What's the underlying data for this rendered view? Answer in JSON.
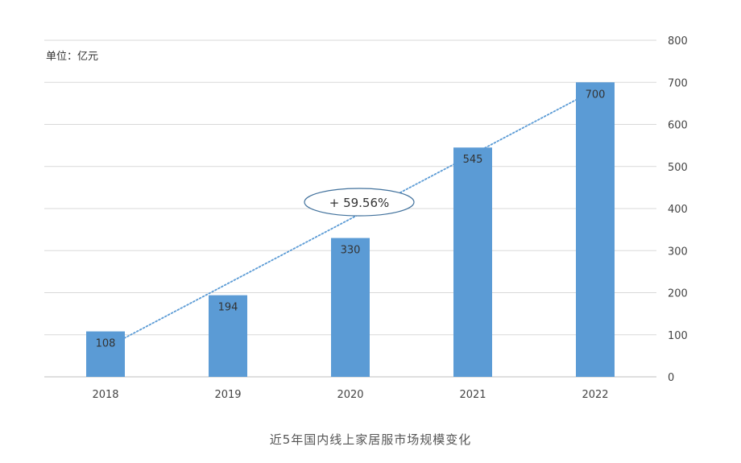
{
  "chart_data": {
    "type": "bar",
    "unit_label": "单位：亿元",
    "categories": [
      "2018",
      "2019",
      "2020",
      "2021",
      "2022"
    ],
    "values": [
      108,
      194,
      330,
      545,
      700
    ],
    "data_labels": [
      "108",
      "194",
      "330",
      "545",
      "700"
    ],
    "y_ticks": [
      "0",
      "100",
      "200",
      "300",
      "400",
      "500",
      "600",
      "700",
      "800"
    ],
    "ylim": [
      0,
      800
    ],
    "y_axis_side": "right",
    "grid": true,
    "trendline": {
      "style": "dotted",
      "type": "linear"
    },
    "annotation": "+ 59.56%",
    "caption": "近5年国内线上家居服市场规模变化",
    "colors": {
      "bar": "#5b9bd5",
      "trendline": "#5b9bd5",
      "grid": "#d9d9d9",
      "annotation_border": "#41719c"
    }
  }
}
